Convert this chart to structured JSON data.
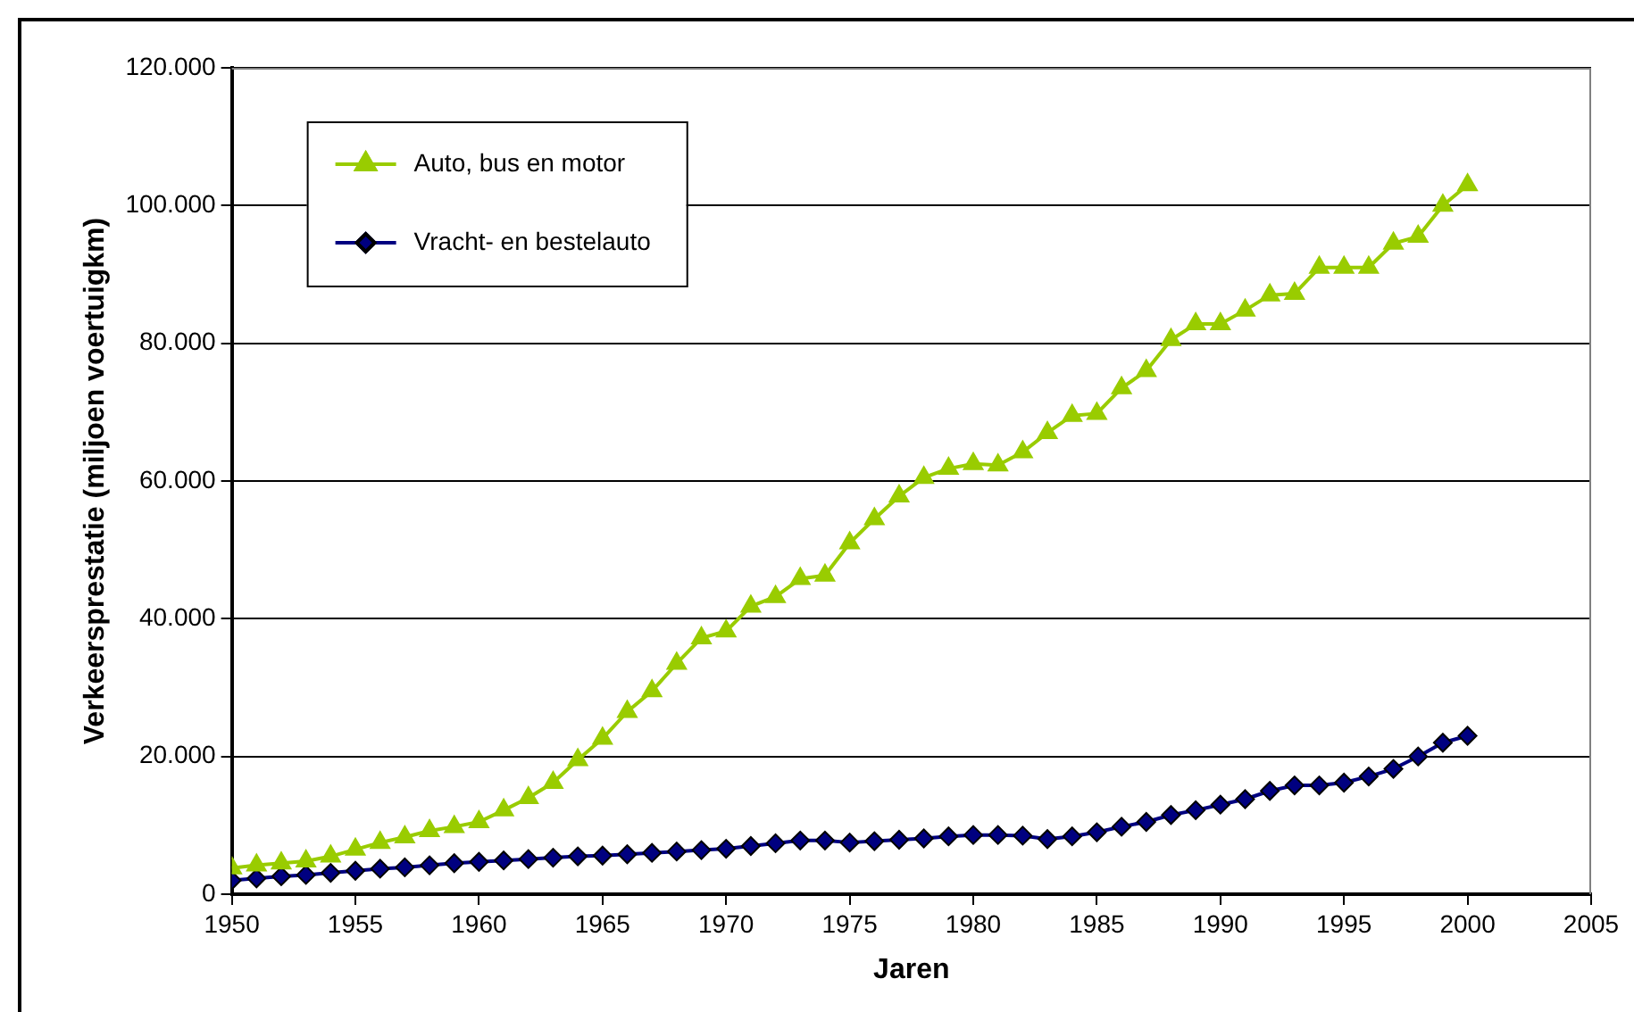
{
  "chart_data": {
    "type": "line",
    "xlabel": "Jaren",
    "ylabel": "Verkeersprestatie (miljoen voertuigkm)",
    "x": [
      1950,
      1951,
      1952,
      1953,
      1954,
      1955,
      1956,
      1957,
      1958,
      1959,
      1960,
      1961,
      1962,
      1963,
      1964,
      1965,
      1966,
      1967,
      1968,
      1969,
      1970,
      1971,
      1972,
      1973,
      1974,
      1975,
      1976,
      1977,
      1978,
      1979,
      1980,
      1981,
      1982,
      1983,
      1984,
      1985,
      1986,
      1987,
      1988,
      1989,
      1990,
      1991,
      1992,
      1993,
      1994,
      1995,
      1996,
      1997,
      1998,
      1999,
      2000
    ],
    "series": [
      {
        "name": "Auto, bus en motor",
        "color": "#99cc00",
        "marker": "triangle",
        "values": [
          3800,
          4200,
          4500,
          4800,
          5500,
          6500,
          7500,
          8300,
          9200,
          9800,
          10500,
          12200,
          14000,
          16200,
          19500,
          22600,
          26500,
          29500,
          33500,
          37200,
          38200,
          41800,
          43200,
          45800,
          46300,
          51000,
          54500,
          57800,
          60500,
          61800,
          62500,
          62300,
          64200,
          67000,
          69500,
          69800,
          73500,
          76000,
          80500,
          82800,
          82800,
          84800,
          87000,
          87200,
          91000,
          91000,
          91000,
          94500,
          95500,
          100000,
          103000
        ]
      },
      {
        "name": "Vracht- en bestelauto",
        "color": "#000080",
        "marker": "diamond",
        "values": [
          2000,
          2300,
          2600,
          2800,
          3100,
          3400,
          3700,
          3900,
          4200,
          4500,
          4700,
          4900,
          5100,
          5300,
          5500,
          5600,
          5800,
          6000,
          6200,
          6400,
          6600,
          7000,
          7400,
          7800,
          7800,
          7500,
          7700,
          7900,
          8100,
          8400,
          8600,
          8600,
          8500,
          8000,
          8400,
          9000,
          9800,
          10500,
          11500,
          12200,
          13000,
          13800,
          15000,
          15800,
          15800,
          16200,
          17100,
          18200,
          20000,
          22000,
          23000
        ]
      }
    ],
    "xlim": [
      1950,
      2005
    ],
    "xticks": [
      1950,
      1955,
      1960,
      1965,
      1970,
      1975,
      1980,
      1985,
      1990,
      1995,
      2000,
      2005
    ],
    "ylim": [
      0,
      120000
    ],
    "yticks": [
      0,
      {
        "value": 20000,
        "label": "20.000"
      },
      {
        "value": 40000,
        "label": "40.000"
      },
      {
        "value": 60000,
        "label": "60.000"
      },
      {
        "value": 80000,
        "label": "80.000"
      },
      {
        "value": 100000,
        "label": "100.000"
      },
      {
        "value": 120000,
        "label": "120.000"
      }
    ],
    "grid": "y",
    "legend": "top left"
  }
}
